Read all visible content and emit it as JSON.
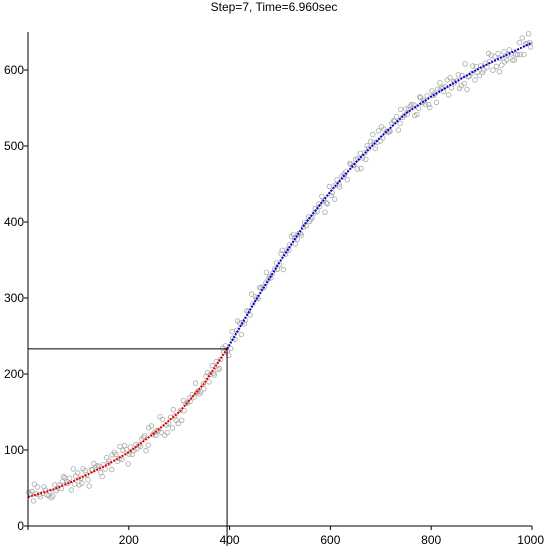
{
  "chart_data": {
    "type": "scatter",
    "title": "Step=7,  Time=6.960sec",
    "xlim": [
      0,
      1000
    ],
    "ylim": [
      0,
      650
    ],
    "x_ticks": [
      0,
      200,
      400,
      600,
      800,
      1000
    ],
    "y_ticks": [
      0,
      100,
      200,
      300,
      400,
      500,
      600
    ],
    "x_tick_labels": [
      "0",
      "200",
      "400",
      "600",
      "800",
      "1000"
    ],
    "y_tick_labels": [
      "0",
      "100",
      "200",
      "300",
      "400",
      "500",
      "600"
    ],
    "grid": false,
    "colors": {
      "points": "#a8a8a8",
      "fit_left": "#dd0000",
      "fit_right": "#0000cc",
      "axes": "#000000",
      "guide": "#000000"
    },
    "split_point": {
      "x": 395,
      "y": 233
    },
    "fit_left": {
      "name": "",
      "x": [
        0,
        50,
        100,
        150,
        200,
        250,
        300,
        350,
        395
      ],
      "y": [
        38,
        48,
        62,
        78,
        97,
        122,
        150,
        188,
        233
      ]
    },
    "fit_right": {
      "name": "",
      "x": [
        395,
        450,
        500,
        550,
        600,
        650,
        700,
        750,
        800,
        850,
        900,
        950,
        1000
      ],
      "y": [
        233,
        295,
        348,
        398,
        440,
        478,
        512,
        543,
        565,
        585,
        604,
        620,
        636
      ]
    },
    "scatter_noise": 9,
    "scatter_count": 330
  }
}
